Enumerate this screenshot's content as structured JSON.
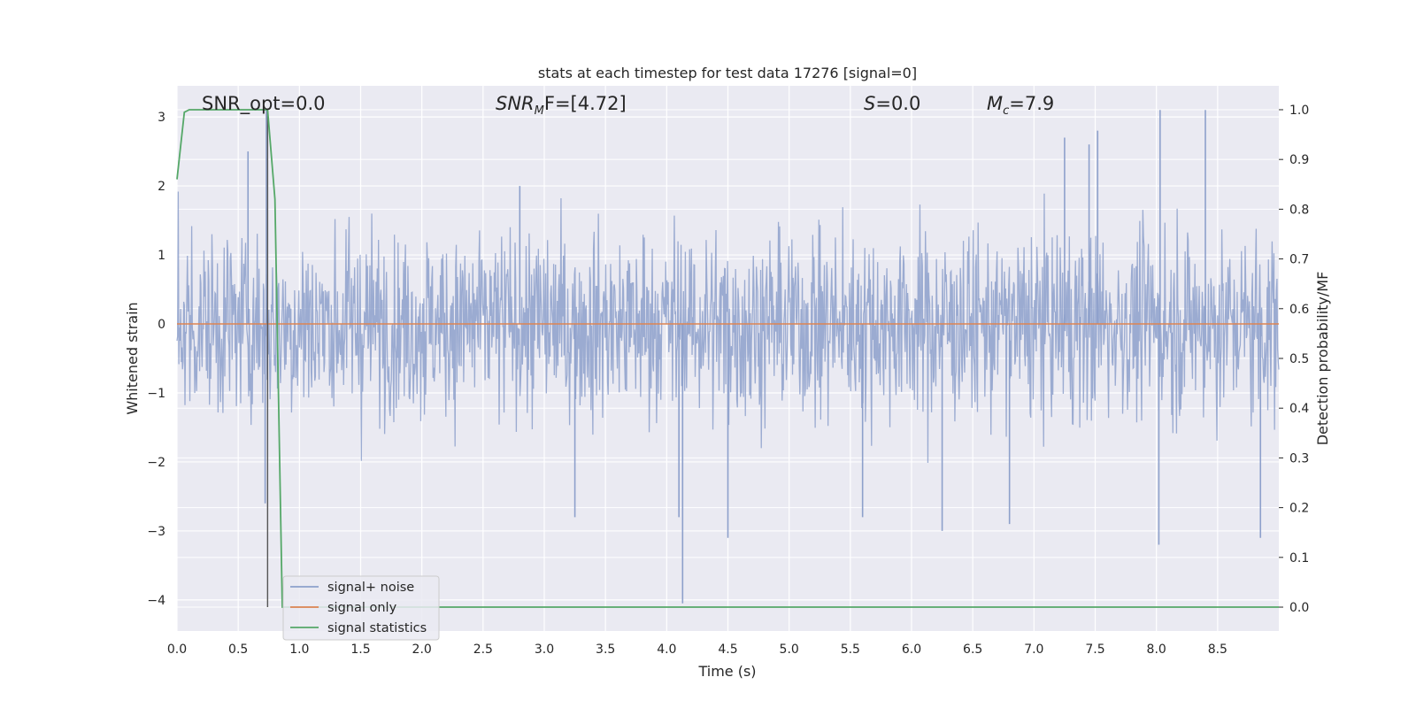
{
  "chart_data": {
    "type": "line",
    "title": "stats at each timestep for test data 17276 [signal=0]",
    "xlabel": "Time (s)",
    "ylabel": "Whitened strain",
    "ylabel_right": "Detection probability/MF",
    "xlim": [
      0,
      9.0
    ],
    "ylim": [
      -4.45,
      3.45
    ],
    "ylim_right": [
      -0.048,
      1.048
    ],
    "x_ticks": [
      0,
      0.5,
      1,
      1.5,
      2,
      2.5,
      3,
      3.5,
      4,
      4.5,
      5,
      5.5,
      6,
      6.5,
      7,
      7.5,
      8,
      8.5
    ],
    "x_tick_labels": [
      "0.0",
      "0.5",
      "1.0",
      "1.5",
      "2.0",
      "2.5",
      "3.0",
      "3.5",
      "4.0",
      "4.5",
      "5.0",
      "5.5",
      "6.0",
      "6.5",
      "7.0",
      "7.5",
      "8.0",
      "8.5"
    ],
    "y_ticks": [
      -4,
      -3,
      -2,
      -1,
      0,
      1,
      2,
      3
    ],
    "y_tick_labels": [
      "−4",
      "−3",
      "−2",
      "−1",
      "0",
      "1",
      "2",
      "3"
    ],
    "y_right_ticks": [
      0,
      0.1,
      0.2,
      0.3,
      0.4,
      0.5,
      0.6,
      0.7,
      0.8,
      0.9,
      1.0
    ],
    "y_right_tick_labels": [
      "0.0",
      "0.1",
      "0.2",
      "0.3",
      "0.4",
      "0.5",
      "0.6",
      "0.7",
      "0.8",
      "0.9",
      "1.0"
    ],
    "grid": true,
    "legend_position": "lower-left",
    "annotations": {
      "snr_opt": "SNR_opt=0.0",
      "snr_mf_main": "SNR",
      "snr_mf_sub": "M",
      "snr_mf_rest": "F=[4.72]",
      "s_main": "S",
      "s_rest": "=0.0",
      "mc_main": "M",
      "mc_sub": "c",
      "mc_rest": "=7.9"
    },
    "vline_x": 0.74,
    "series": [
      {
        "name": "signal+ noise",
        "axis": "left",
        "color": "#8da0cb",
        "style": "noise",
        "envelope_typical": 1.7,
        "peaks": [
          [
            0.73,
            3.1
          ],
          [
            0.58,
            2.5
          ],
          [
            0.72,
            -2.6
          ],
          [
            2.8,
            2.0
          ],
          [
            3.25,
            -2.8
          ],
          [
            4.1,
            -2.8
          ],
          [
            4.13,
            -4.05
          ],
          [
            4.5,
            -3.1
          ],
          [
            6.25,
            -3.0
          ],
          [
            7.25,
            2.7
          ],
          [
            7.52,
            2.8
          ],
          [
            8.03,
            3.1
          ],
          [
            8.4,
            3.1
          ],
          [
            8.02,
            -3.2
          ],
          [
            8.85,
            -3.1
          ],
          [
            7.45,
            2.6
          ],
          [
            6.8,
            -2.9
          ],
          [
            5.6,
            -2.8
          ]
        ]
      },
      {
        "name": "signal only",
        "axis": "left",
        "color": "#dd8452",
        "x": [
          0,
          9.0
        ],
        "y": [
          0,
          0
        ]
      },
      {
        "name": "signal statistics",
        "axis": "right",
        "color": "#55a868",
        "x": [
          0,
          0.06,
          0.1,
          0.15,
          0.3,
          0.5,
          0.7,
          0.74,
          0.8,
          0.86,
          0.9,
          1.5,
          2.5,
          3.5,
          4.5,
          5.5,
          6.5,
          7.5,
          8.5,
          9.0
        ],
        "y": [
          0.86,
          0.995,
          1.0,
          1.0,
          1.0,
          1.0,
          1.0,
          1.0,
          0.82,
          0.0,
          0.0,
          0.0,
          0.0,
          0.0,
          0.0,
          0.0,
          0.0,
          0.0,
          0.0,
          0.0
        ]
      }
    ]
  },
  "colors": {
    "axes_background": "#eaeaf2",
    "grid": "#ffffff",
    "vline": "#555555"
  }
}
